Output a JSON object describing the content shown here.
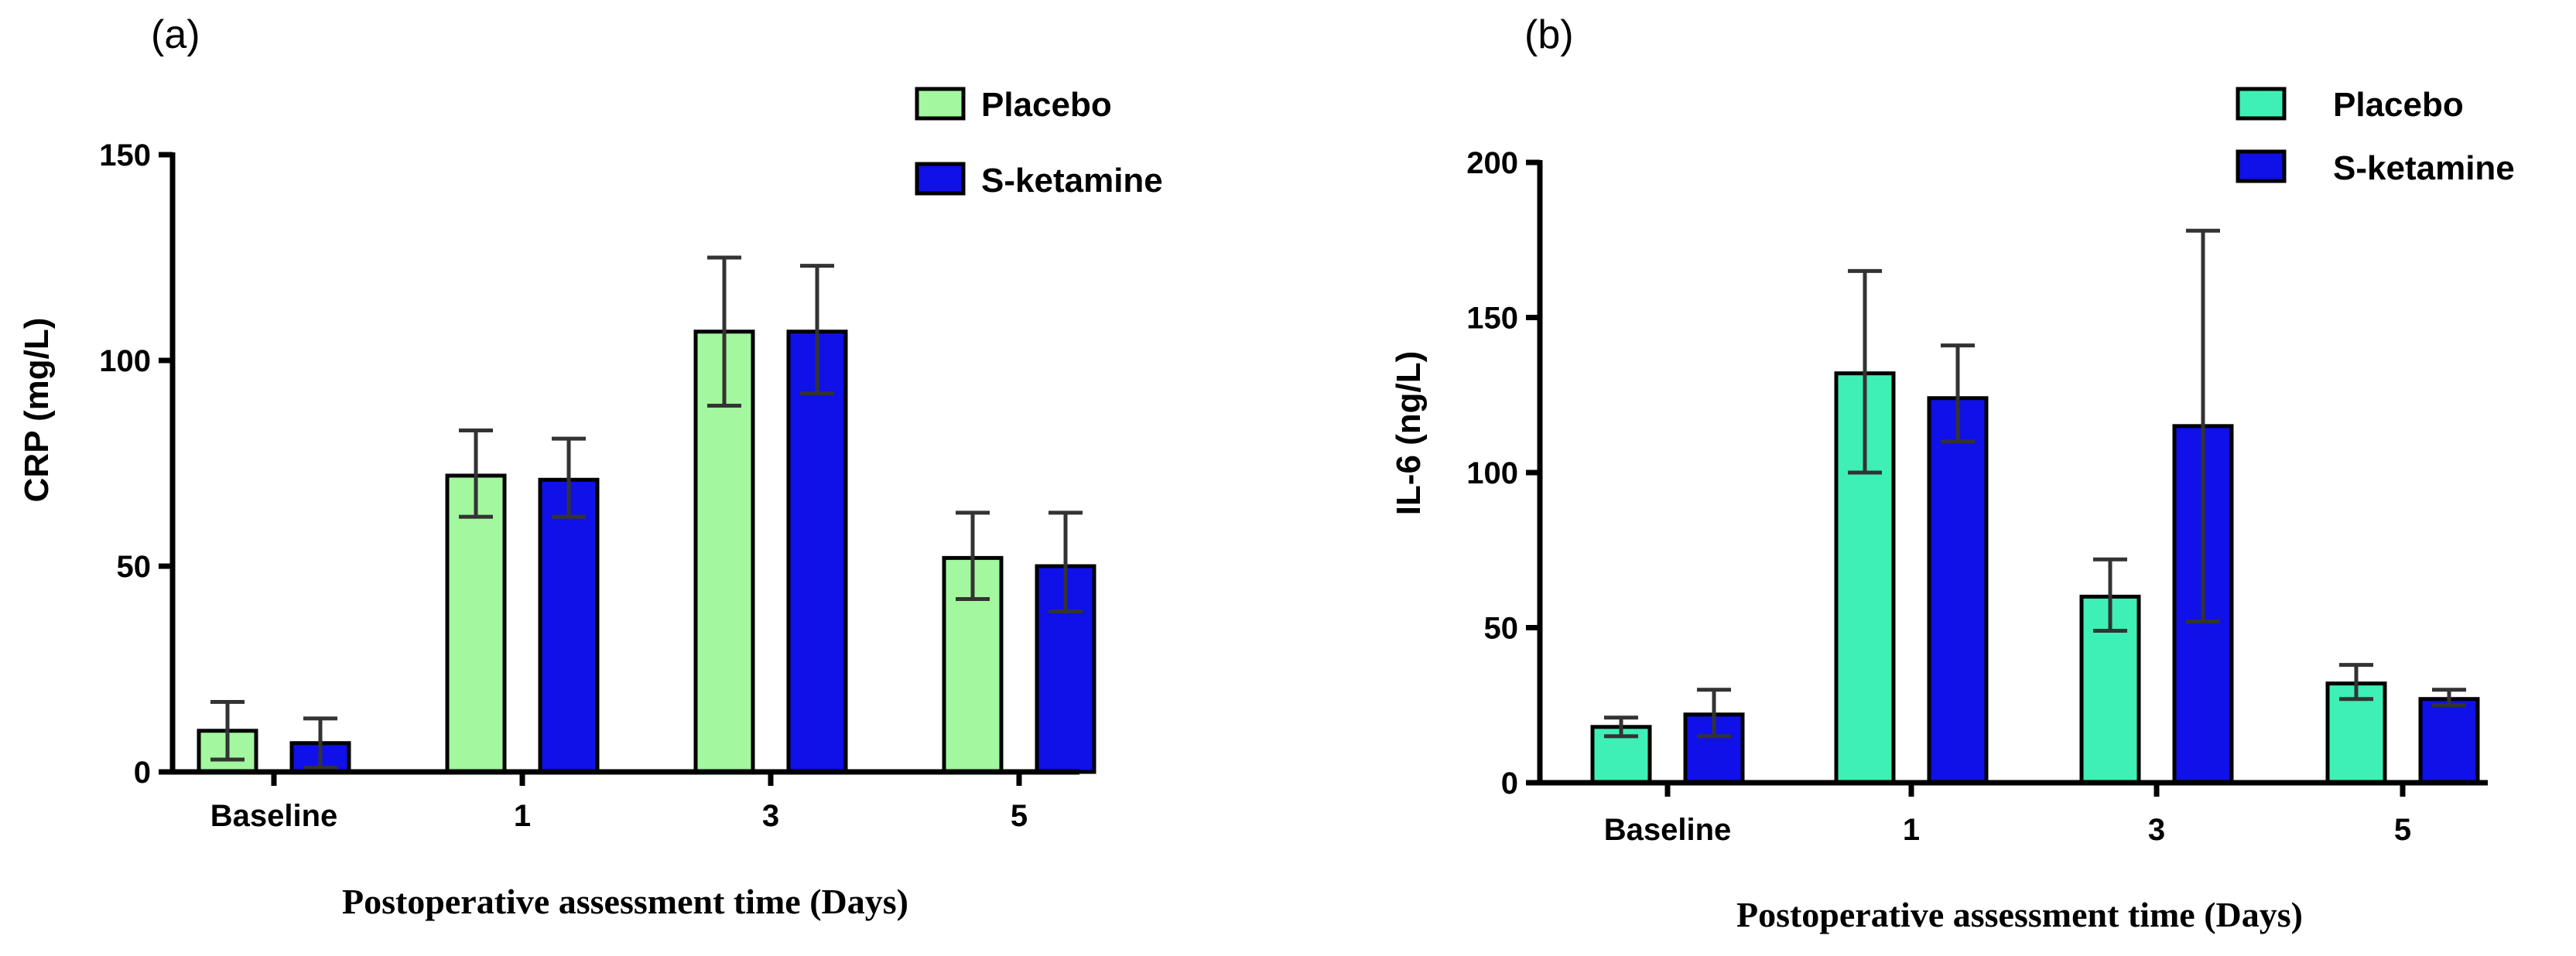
{
  "chart_data": [
    {
      "type": "bar",
      "panel_label": "(a)",
      "categories": [
        "Baseline",
        "1",
        "3",
        "5"
      ],
      "series": [
        {
          "name": "Placebo",
          "color": "#a3f79e",
          "values": [
            10,
            72,
            107,
            52
          ],
          "err_low": [
            3,
            62,
            89,
            42
          ],
          "err_high": [
            17,
            83,
            125,
            63
          ]
        },
        {
          "name": "S-ketamine",
          "color": "#1010e8",
          "values": [
            7,
            71,
            107,
            50
          ],
          "err_low": [
            1,
            62,
            92,
            39
          ],
          "err_high": [
            13,
            81,
            123,
            63
          ]
        }
      ],
      "ylabel": "CRP (mg/L)",
      "xlabel": "Postoperative assessment time (Days)",
      "ylim": [
        0,
        150
      ],
      "yticks": [
        "0",
        "50",
        "100",
        "150"
      ],
      "legend_position": "top-right"
    },
    {
      "type": "bar",
      "panel_label": "(b)",
      "categories": [
        "Baseline",
        "1",
        "3",
        "5"
      ],
      "series": [
        {
          "name": "Placebo",
          "color": "#3ef0b5",
          "values": [
            18,
            132,
            60,
            32
          ],
          "err_low": [
            15,
            100,
            49,
            27
          ],
          "err_high": [
            21,
            165,
            72,
            38
          ]
        },
        {
          "name": "S-ketamine",
          "color": "#1010e8",
          "values": [
            22,
            124,
            115,
            27
          ],
          "err_low": [
            15,
            110,
            52,
            25
          ],
          "err_high": [
            30,
            141,
            178,
            30
          ]
        }
      ],
      "ylabel": "IL-6 (ng/L)",
      "xlabel": "Postoperative assessment time (Days)",
      "ylim": [
        0,
        200
      ],
      "yticks": [
        "0",
        "50",
        "100",
        "150",
        "200"
      ],
      "legend_position": "top-right"
    }
  ]
}
